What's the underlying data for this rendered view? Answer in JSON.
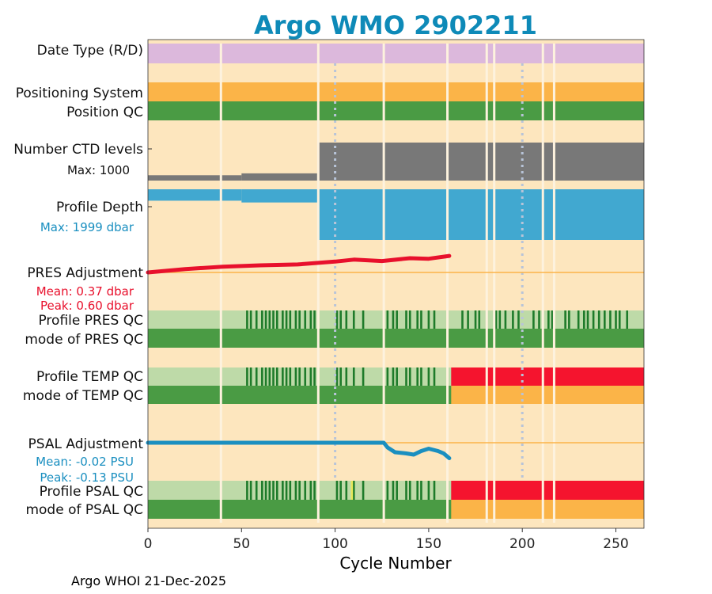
{
  "chart_data": {
    "type": "timeline",
    "title": "Argo WMO 2902211",
    "xlabel": "Cycle Number",
    "xlim": [
      0,
      265
    ],
    "xticks": [
      0,
      50,
      100,
      150,
      200,
      250
    ],
    "vertical_markers": [
      100,
      200
    ],
    "missing_cycles": [
      39,
      91,
      126,
      160,
      181,
      185,
      211,
      217
    ],
    "rows": [
      {
        "id": "date_type",
        "label": "Date Type (R/D)",
        "type": "band",
        "color": "#DCB8DC"
      },
      {
        "id": "positioning",
        "label": "Positioning System",
        "type": "band",
        "color": "#FBB448"
      },
      {
        "id": "position_qc",
        "label": "Position QC",
        "type": "band",
        "color": "#4A9B44"
      },
      {
        "id": "ctd_levels",
        "label": "Number CTD levels",
        "sublabel": "Max: 1000",
        "type": "levels",
        "color": "#787878",
        "max": 1000,
        "segments": [
          {
            "from": 0,
            "to": 50,
            "value": 140
          },
          {
            "from": 50,
            "to": 91,
            "value": 190
          },
          {
            "from": 91,
            "to": 265,
            "value": 1000
          }
        ]
      },
      {
        "id": "profile_depth",
        "label": "Profile Depth",
        "sublabel": "Max: 1999 dbar",
        "type": "depth",
        "color": "#41A8D0",
        "max": 1999,
        "segments": [
          {
            "from": 0,
            "to": 50,
            "value": 450
          },
          {
            "from": 50,
            "to": 91,
            "value": 520
          },
          {
            "from": 91,
            "to": 265,
            "value": 1999
          }
        ]
      },
      {
        "id": "pres_adj",
        "label": "PRES Adjustment",
        "sublabel": "Mean: 0.37 dbar",
        "sublabel2": "Peak: 0.60 dbar",
        "type": "line",
        "color": "#E8102C",
        "points": [
          [
            0,
            0.0
          ],
          [
            20,
            0.12
          ],
          [
            40,
            0.2
          ],
          [
            60,
            0.25
          ],
          [
            80,
            0.28
          ],
          [
            100,
            0.38
          ],
          [
            110,
            0.45
          ],
          [
            125,
            0.4
          ],
          [
            140,
            0.5
          ],
          [
            150,
            0.48
          ],
          [
            161,
            0.58
          ]
        ]
      },
      {
        "id": "prof_pres_qc",
        "label": "Profile PRES QC",
        "type": "qc",
        "color": "#BEDAA8",
        "marks": [
          53,
          55,
          58,
          61,
          63,
          65,
          67,
          69,
          72,
          74,
          76,
          79,
          81,
          84,
          87,
          89,
          101,
          103,
          106,
          110,
          115,
          128,
          131,
          133,
          138,
          140,
          144,
          146,
          150,
          153,
          168,
          171,
          175,
          177,
          186,
          188,
          191,
          195,
          198,
          206,
          209,
          214,
          216,
          223,
          225,
          230,
          233,
          235,
          238,
          241,
          244,
          247,
          250,
          252,
          256
        ],
        "mark_color": "#1E7B2A",
        "highlight": [
          {
            "x": 160,
            "color": "#E8E85A"
          }
        ]
      },
      {
        "id": "mode_pres_qc",
        "label": "mode of PRES QC",
        "type": "band",
        "color": "#4A9B44"
      },
      {
        "id": "prof_temp_qc",
        "label": "Profile TEMP QC",
        "type": "qc",
        "color": "#BEDAA8",
        "marks": [
          53,
          55,
          58,
          61,
          63,
          65,
          67,
          69,
          72,
          74,
          76,
          79,
          81,
          84,
          87,
          89,
          101,
          103,
          106,
          110,
          115,
          128,
          131,
          133,
          138,
          140,
          144,
          146,
          150,
          153
        ],
        "mark_color": "#1E7B2A",
        "after": {
          "from": 162,
          "color": "#F5142E"
        }
      },
      {
        "id": "mode_temp_qc",
        "label": "mode of TEMP QC",
        "type": "band",
        "color": "#4A9B44",
        "after": {
          "from": 162,
          "color": "#FBB448"
        }
      },
      {
        "id": "psal_adj",
        "label": "PSAL Adjustment",
        "sublabel": "Mean: -0.02 PSU",
        "sublabel2": "Peak: -0.13 PSU",
        "type": "line",
        "color": "#1A8FC0",
        "points": [
          [
            0,
            0.0
          ],
          [
            126,
            0.0
          ],
          [
            128,
            -0.04
          ],
          [
            132,
            -0.08
          ],
          [
            138,
            -0.09
          ],
          [
            142,
            -0.1
          ],
          [
            146,
            -0.07
          ],
          [
            150,
            -0.05
          ],
          [
            155,
            -0.07
          ],
          [
            158,
            -0.09
          ],
          [
            161,
            -0.13
          ]
        ]
      },
      {
        "id": "prof_psal_qc",
        "label": "Profile PSAL QC",
        "type": "qc",
        "color": "#BEDAA8",
        "marks": [
          53,
          55,
          58,
          61,
          63,
          65,
          67,
          69,
          72,
          74,
          76,
          79,
          81,
          84,
          87,
          89,
          101,
          103,
          106,
          110,
          115,
          128,
          131,
          133,
          138,
          140,
          144,
          146,
          150,
          153
        ],
        "mark_color": "#1E7B2A",
        "highlight": [
          {
            "x": 109,
            "color": "#E8E85A"
          }
        ],
        "after": {
          "from": 162,
          "color": "#F5142E"
        }
      },
      {
        "id": "mode_psal_qc",
        "label": "mode of PSAL QC",
        "type": "band",
        "color": "#4A9B44",
        "after": {
          "from": 162,
          "color": "#FBB448"
        }
      }
    ]
  },
  "footer": "Argo WHOI 21-Dec-2025",
  "colors": {
    "background": "#FDE6BE",
    "title": "#0E8AB8",
    "grid": "#B8C4D8",
    "pres_text": "#E8102C",
    "psal_text": "#1A8FC0"
  }
}
